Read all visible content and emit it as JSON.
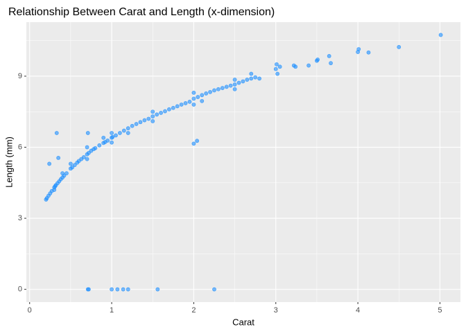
{
  "chart_data": {
    "type": "scatter",
    "title": "Relationship Between Carat and Length (x-dimension)",
    "x_label": "Carat",
    "y_label": "Length (mm)",
    "xlim": [
      -0.04,
      5.25
    ],
    "ylim": [
      -0.537,
      11.28
    ],
    "xticks": [
      0,
      1,
      2,
      3,
      4,
      5
    ],
    "yticks": [
      0,
      3,
      6,
      9
    ],
    "x_minor_ticks": [
      0.5,
      1.5,
      2.5,
      3.5,
      4.5
    ],
    "y_minor_ticks": [
      1.5,
      4.5,
      7.5,
      10.5
    ],
    "grid": true,
    "color": "#1e90ff",
    "x": [
      0.2,
      0.21,
      0.23,
      0.25,
      0.27,
      0.3,
      0.31,
      0.32,
      0.34,
      0.36,
      0.38,
      0.4,
      0.42,
      0.45,
      0.5,
      0.52,
      0.55,
      0.58,
      0.6,
      0.63,
      0.66,
      0.7,
      0.72,
      0.75,
      0.78,
      0.8,
      0.85,
      0.9,
      0.92,
      0.95,
      1.0,
      1.01,
      1.05,
      1.1,
      1.15,
      1.2,
      1.25,
      1.3,
      1.35,
      1.4,
      1.45,
      1.5,
      1.55,
      1.6,
      1.65,
      1.7,
      1.75,
      1.8,
      1.85,
      1.9,
      1.95,
      2.0,
      2.05,
      2.1,
      2.15,
      2.2,
      2.25,
      2.3,
      2.35,
      2.4,
      2.45,
      2.5,
      2.55,
      2.6,
      2.65,
      2.7,
      2.75,
      3.0,
      3.01,
      3.02,
      3.05,
      3.22,
      3.24,
      3.4,
      3.5,
      3.51,
      3.65,
      3.67,
      4.0,
      4.01,
      4.13,
      4.5,
      5.01,
      0.3,
      0.4,
      0.5,
      0.7,
      0.7,
      0.9,
      1.0,
      1.0,
      1.2,
      1.5,
      1.5,
      2.0,
      2.0,
      2.1,
      2.5,
      2.5,
      2.7,
      2.8,
      0.33,
      0.24,
      0.35,
      0.71,
      2.0,
      2.04,
      0.71,
      0.72,
      1.0,
      1.07,
      1.14,
      1.2,
      1.56,
      2.25
    ],
    "y": [
      3.79,
      3.85,
      3.95,
      4.05,
      4.15,
      4.3,
      4.35,
      4.4,
      4.48,
      4.56,
      4.65,
      4.72,
      4.8,
      4.9,
      5.1,
      5.15,
      5.25,
      5.35,
      5.42,
      5.5,
      5.58,
      5.7,
      5.76,
      5.85,
      5.92,
      5.96,
      6.08,
      6.18,
      6.22,
      6.28,
      6.4,
      6.43,
      6.5,
      6.6,
      6.7,
      6.8,
      6.9,
      6.98,
      7.06,
      7.14,
      7.2,
      7.3,
      7.38,
      7.45,
      7.52,
      7.6,
      7.66,
      7.73,
      7.8,
      7.86,
      7.92,
      8.05,
      8.12,
      8.2,
      8.27,
      8.33,
      8.4,
      8.45,
      8.5,
      8.55,
      8.6,
      8.65,
      8.72,
      8.78,
      8.85,
      8.9,
      8.95,
      9.3,
      9.5,
      9.1,
      9.4,
      9.45,
      9.4,
      9.45,
      9.65,
      9.7,
      9.85,
      9.55,
      10.02,
      10.14,
      10.0,
      10.23,
      10.74,
      4.2,
      4.9,
      5.3,
      5.5,
      6.0,
      6.4,
      6.2,
      6.6,
      6.6,
      7.5,
      7.1,
      7.8,
      8.3,
      7.95,
      8.45,
      8.85,
      9.1,
      8.9,
      6.6,
      5.3,
      5.55,
      6.6,
      6.15,
      6.27,
      0,
      0,
      0,
      0,
      0,
      0,
      0,
      0
    ]
  }
}
